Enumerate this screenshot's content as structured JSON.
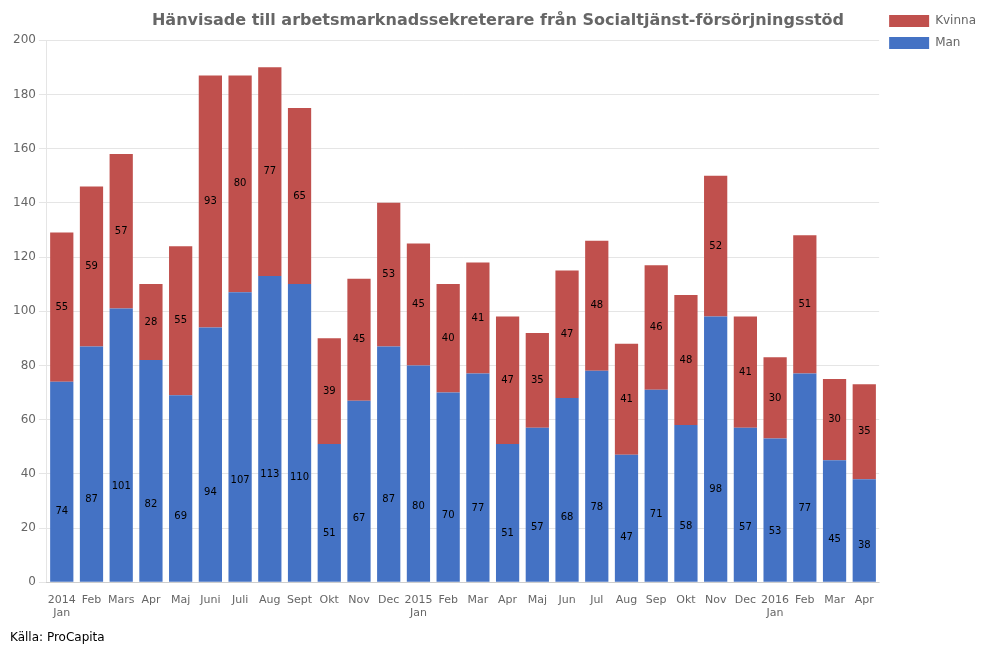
{
  "chart_data": {
    "type": "bar",
    "title": "Hänvisade till arbetsmarknadssekreterare från Socialtjänst-försörjningsstöd",
    "categories": [
      "2014\nJan",
      "Feb",
      "Mars",
      "Apr",
      "Maj",
      "Juni",
      "Juli",
      "Aug",
      "Sept",
      "Okt",
      "Nov",
      "Dec",
      "2015\nJan",
      "Feb",
      "Mar",
      "Apr",
      "Maj",
      "Jun",
      "Jul",
      "Aug",
      "Sep",
      "Okt",
      "Nov",
      "Dec",
      "2016\nJan",
      "Feb",
      "Mar",
      "Apr"
    ],
    "series": [
      {
        "name": "Man",
        "color": "#4472C4",
        "values": [
          74,
          87,
          101,
          82,
          69,
          94,
          107,
          113,
          110,
          51,
          67,
          87,
          80,
          70,
          77,
          51,
          57,
          68,
          78,
          47,
          71,
          58,
          98,
          57,
          53,
          77,
          45,
          38
        ]
      },
      {
        "name": "Kvinna",
        "color": "#C0504D",
        "values": [
          55,
          59,
          57,
          28,
          55,
          93,
          80,
          77,
          65,
          39,
          45,
          53,
          45,
          40,
          41,
          47,
          35,
          47,
          48,
          41,
          46,
          48,
          52,
          41,
          30,
          51,
          30,
          35
        ]
      }
    ],
    "stacked": true,
    "data_labels": true,
    "ylim": [
      0,
      200
    ],
    "yticks": [
      0,
      20,
      40,
      60,
      80,
      100,
      120,
      140,
      160,
      180,
      200
    ],
    "grid": true,
    "legend": "upper right",
    "annotations": [
      "Källa: ProCapita"
    ]
  }
}
